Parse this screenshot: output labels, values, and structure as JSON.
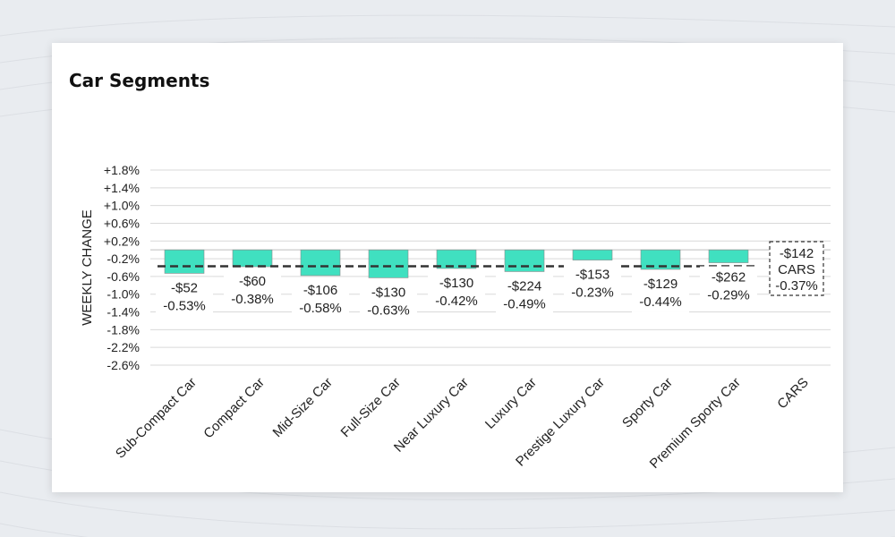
{
  "card": {
    "title": "Car Segments"
  },
  "chart_data": {
    "type": "bar",
    "title": "Car Segments",
    "xlabel": "",
    "ylabel": "WEEKLY CHANGE",
    "ylim": [
      -2.6,
      1.8
    ],
    "y_ticks": [
      "+1.8%",
      "+1.4%",
      "+1.0%",
      "+0.6%",
      "+0.2%",
      "-0.2%",
      "-0.6%",
      "-1.0%",
      "-1.4%",
      "-1.8%",
      "-2.2%",
      "-2.6%"
    ],
    "categories": [
      "Sub-Compact Car",
      "Compact Car",
      "Mid-Size Car",
      "Full-Size Car",
      "Near Luxury Car",
      "Luxury Car",
      "Prestige Luxury Car",
      "Sporty Car",
      "Premium Sporty Car",
      "CARS"
    ],
    "values": [
      -0.53,
      -0.38,
      -0.58,
      -0.63,
      -0.42,
      -0.49,
      -0.23,
      -0.44,
      -0.29,
      null
    ],
    "price_labels": [
      "-$52",
      "-$60",
      "-$106",
      "-$130",
      "-$130",
      "-$224",
      "-$153",
      "-$129",
      "-$262",
      "-$142"
    ],
    "pct_labels": [
      "-0.53%",
      "-0.38%",
      "-0.58%",
      "-0.63%",
      "-0.42%",
      "-0.49%",
      "-0.23%",
      "-0.44%",
      "-0.29%",
      "-0.37%"
    ],
    "summary_name": "CARS",
    "average_line": -0.37,
    "grid": true,
    "colors": {
      "bar": "#40e0c0",
      "bar_border": "#8a8a8a",
      "average_line": "#333333",
      "grid": "#d9d9d9",
      "zero_line": "#bdbdbd"
    }
  }
}
